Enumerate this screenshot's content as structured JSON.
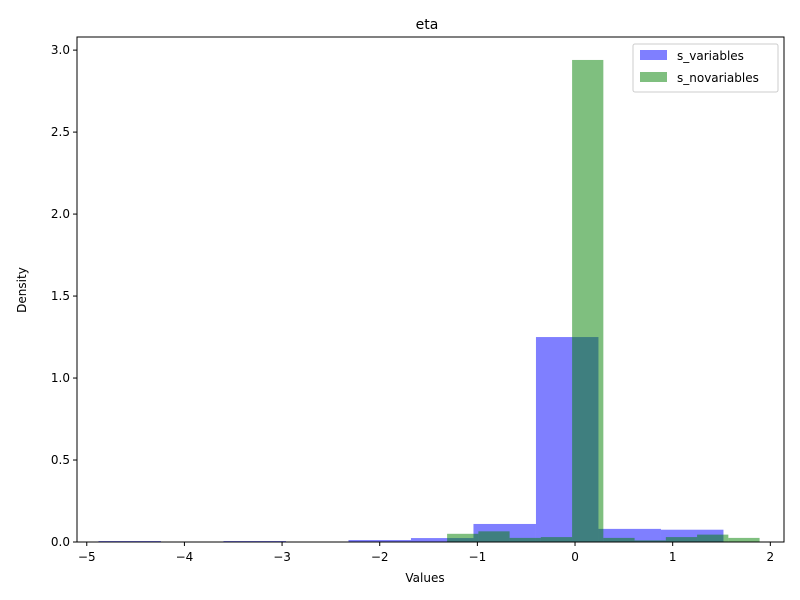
{
  "chart_data": {
    "type": "bar",
    "title": "eta",
    "xlabel": "Values",
    "ylabel": "Density",
    "xlim": [
      -5.1,
      2.14
    ],
    "ylim": [
      0,
      3.08
    ],
    "x_ticks": [
      -5,
      -4,
      -3,
      -2,
      -1,
      0,
      1,
      2
    ],
    "y_ticks": [
      0.0,
      0.5,
      1.0,
      1.5,
      2.0,
      2.5,
      3.0
    ],
    "x_tick_labels": [
      "−5",
      "−4",
      "−3",
      "−2",
      "−1",
      "0",
      "1",
      "2"
    ],
    "y_tick_labels": [
      "0.0",
      "0.5",
      "1.0",
      "1.5",
      "2.0",
      "2.5",
      "3.0"
    ],
    "grid": false,
    "legend_position": "top-right",
    "series": [
      {
        "name": "s_variables",
        "color": "#0000ff",
        "opacity": 0.5,
        "bins": [
          {
            "x0": -4.88,
            "x1": -4.24,
            "value": 0.006
          },
          {
            "x0": -4.24,
            "x1": -3.6,
            "value": 0.0
          },
          {
            "x0": -3.6,
            "x1": -2.96,
            "value": 0.006
          },
          {
            "x0": -2.96,
            "x1": -2.32,
            "value": 0.0
          },
          {
            "x0": -2.32,
            "x1": -1.68,
            "value": 0.012
          },
          {
            "x0": -1.68,
            "x1": -1.04,
            "value": 0.024
          },
          {
            "x0": -1.04,
            "x1": -0.4,
            "value": 0.11
          },
          {
            "x0": -0.4,
            "x1": 0.24,
            "value": 1.25
          },
          {
            "x0": 0.24,
            "x1": 0.88,
            "value": 0.08
          },
          {
            "x0": 0.88,
            "x1": 1.52,
            "value": 0.075
          }
        ]
      },
      {
        "name": "s_novariables",
        "color": "#008000",
        "opacity": 0.5,
        "bins": [
          {
            "x0": -1.31,
            "x1": -0.99,
            "value": 0.05
          },
          {
            "x0": -0.99,
            "x1": -0.67,
            "value": 0.065
          },
          {
            "x0": -0.67,
            "x1": -0.35,
            "value": 0.025
          },
          {
            "x0": -0.35,
            "x1": -0.03,
            "value": 0.03
          },
          {
            "x0": -0.03,
            "x1": 0.29,
            "value": 2.94
          },
          {
            "x0": 0.29,
            "x1": 0.61,
            "value": 0.025
          },
          {
            "x0": 0.61,
            "x1": 0.93,
            "value": 0.01
          },
          {
            "x0": 0.93,
            "x1": 1.25,
            "value": 0.03
          },
          {
            "x0": 1.25,
            "x1": 1.57,
            "value": 0.045
          },
          {
            "x0": 1.57,
            "x1": 1.89,
            "value": 0.025
          }
        ]
      }
    ]
  }
}
